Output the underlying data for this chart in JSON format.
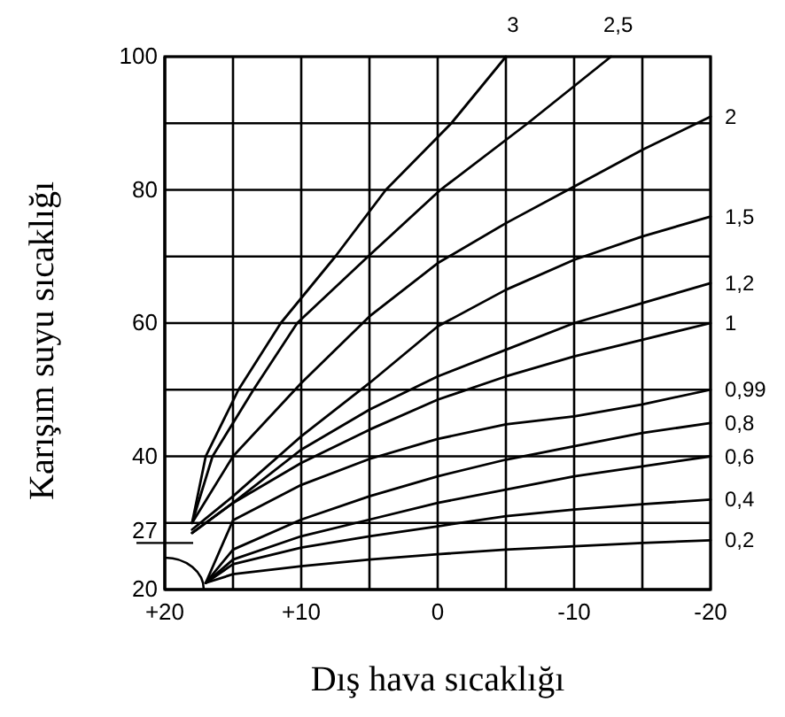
{
  "chart_data": {
    "type": "line",
    "xlabel": "Dış hava sıcaklığı",
    "ylabel": "Karışım suyu sıcaklığı",
    "xlim": [
      20,
      -20
    ],
    "ylim": [
      20,
      100
    ],
    "xticks": [
      {
        "value": 20,
        "label": "+20"
      },
      {
        "value": 15,
        "label": null
      },
      {
        "value": 10,
        "label": "+10"
      },
      {
        "value": 5,
        "label": null
      },
      0,
      {
        "value": -5,
        "label": null
      },
      -10,
      {
        "value": -15,
        "label": null
      },
      -20
    ],
    "yticks": [
      20,
      27,
      {
        "value": 30,
        "label": null
      },
      40,
      {
        "value": 50,
        "label": null
      },
      60,
      {
        "value": 70,
        "label": null
      },
      80,
      {
        "value": 90,
        "label": null
      },
      100
    ],
    "grid": true,
    "legend": false,
    "marker": "none",
    "line_style": "solid",
    "series": [
      {
        "name": "3",
        "color": "#000000",
        "x": [
          18,
          17,
          14.6,
          11.5,
          7.5,
          3.8,
          -1,
          -5
        ],
        "values": [
          30,
          40,
          50,
          60,
          70,
          80,
          90,
          100
        ]
      },
      {
        "name": "2,5",
        "color": "#000000",
        "x": [
          18,
          16.5,
          13.5,
          10.3,
          5.1,
          -0.2,
          -6.6,
          -12.7
        ],
        "values": [
          30,
          40,
          50,
          60,
          70,
          80,
          90,
          100
        ]
      },
      {
        "name": "2",
        "color": "#000000",
        "x": [
          18,
          15,
          10,
          5,
          0,
          -5,
          -10,
          -15,
          -20
        ],
        "values": [
          30,
          40,
          51,
          61,
          69,
          75,
          80.5,
          86,
          91
        ]
      },
      {
        "name": "1,5",
        "color": "#000000",
        "x": [
          18,
          15,
          10,
          5,
          0,
          -5,
          -10,
          -15,
          -20
        ],
        "values": [
          29,
          34,
          43,
          51,
          59.5,
          65,
          69.5,
          73,
          76
        ]
      },
      {
        "name": "1,2",
        "color": "#000000",
        "x": [
          18,
          15,
          10,
          5,
          0,
          -5,
          -10,
          -15,
          -20
        ],
        "values": [
          28.5,
          33,
          41,
          47,
          52,
          56,
          60,
          63,
          66
        ]
      },
      {
        "name": "1",
        "color": "#000000",
        "x": [
          18,
          15,
          10,
          5,
          0,
          -5,
          -10,
          -15,
          -20
        ],
        "values": [
          28.5,
          33,
          39,
          44,
          48.5,
          52,
          55,
          57.5,
          60
        ]
      },
      {
        "name": "0,99",
        "color": "#000000",
        "x": [
          17,
          15,
          10,
          5,
          0,
          -5,
          -10,
          -15,
          -20
        ],
        "values": [
          21,
          30.4,
          35.7,
          39.6,
          42.6,
          44.8,
          46,
          47.8,
          50
        ]
      },
      {
        "name": "0,8",
        "color": "#000000",
        "x": [
          17,
          15,
          10,
          5,
          0,
          -5,
          -10,
          -15,
          -20
        ],
        "values": [
          21,
          26,
          30.5,
          34,
          37,
          39.5,
          41.5,
          43.5,
          45
        ]
      },
      {
        "name": "0,6",
        "color": "#000000",
        "x": [
          17,
          15,
          10,
          5,
          0,
          -5,
          -10,
          -15,
          -20
        ],
        "values": [
          21,
          24.5,
          28,
          30.5,
          33,
          35,
          37,
          38.5,
          40
        ]
      },
      {
        "name": "0,4",
        "color": "#000000",
        "x": [
          17,
          15,
          10,
          5,
          0,
          -5,
          -10,
          -15,
          -20
        ],
        "values": [
          21,
          23.8,
          26.3,
          28,
          29.5,
          31,
          32,
          32.8,
          33.5
        ]
      },
      {
        "name": "0,2",
        "color": "#000000",
        "x": [
          17,
          15,
          10,
          5,
          0,
          -5,
          -10,
          -15,
          -20
        ],
        "values": [
          21,
          22.3,
          23.5,
          24.5,
          25.3,
          26,
          26.5,
          27,
          27.4
        ]
      }
    ]
  }
}
